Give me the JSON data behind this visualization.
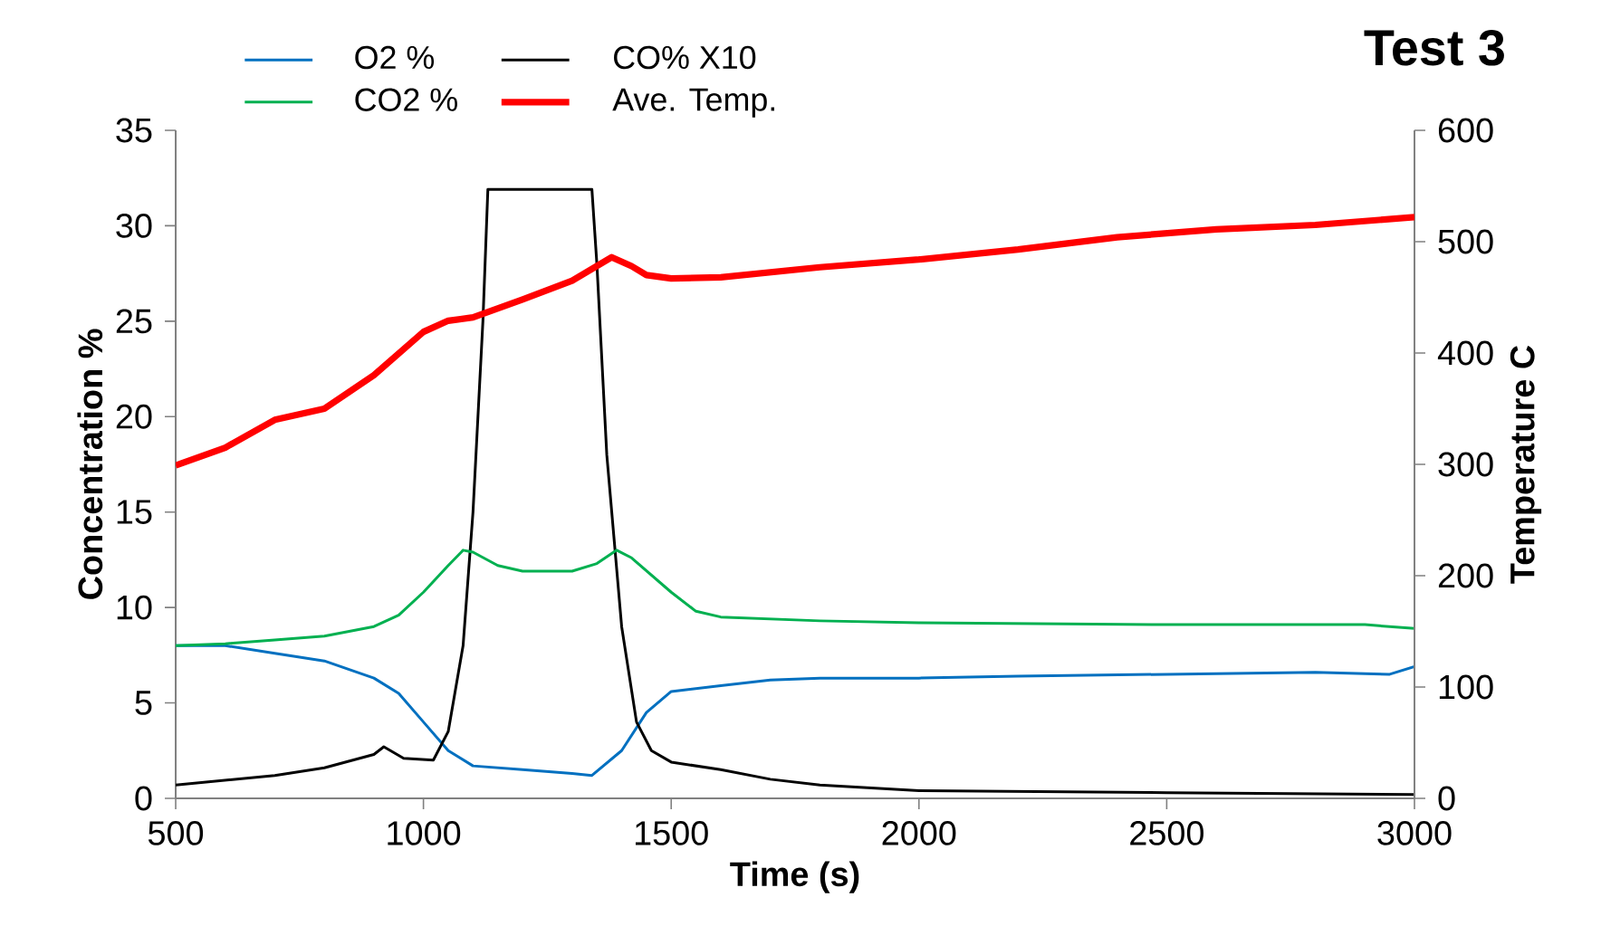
{
  "chart_data": {
    "type": "line",
    "title": "Test 3",
    "xlabel": "Time (s)",
    "ylabel": "Concentration %",
    "y2label": "Temperature C",
    "xlim": [
      500,
      3000
    ],
    "xticks": [
      500,
      1000,
      1500,
      2000,
      2500,
      3000
    ],
    "ylim": [
      0,
      35
    ],
    "yticks": [
      0,
      5,
      10,
      15,
      20,
      25,
      30,
      35
    ],
    "y2lim": [
      0,
      600
    ],
    "y2ticks": [
      0,
      100,
      200,
      300,
      400,
      500,
      600
    ],
    "grid": false,
    "legend": "top",
    "marker": "none",
    "line_style": "solid",
    "series": [
      {
        "name": "O2 %",
        "color": "#0070c0",
        "x": [
          500,
          600,
          700,
          800,
          900,
          950,
          1000,
          1050,
          1100,
          1200,
          1300,
          1340,
          1400,
          1450,
          1500,
          1600,
          1700,
          1800,
          2000,
          2200,
          2500,
          2800,
          2950,
          3000
        ],
        "values": [
          8.0,
          8.0,
          7.6,
          7.2,
          6.3,
          5.5,
          4.0,
          2.5,
          1.7,
          1.5,
          1.3,
          1.2,
          2.5,
          4.5,
          5.6,
          5.9,
          6.2,
          6.3,
          6.3,
          6.4,
          6.5,
          6.6,
          6.5,
          6.9
        ]
      },
      {
        "name": "CO%  X10",
        "color": "#000000",
        "x": [
          500,
          700,
          800,
          900,
          920,
          960,
          1020,
          1050,
          1080,
          1100,
          1120,
          1130,
          1340,
          1350,
          1370,
          1400,
          1430,
          1460,
          1500,
          1600,
          1700,
          1800,
          2000,
          2500,
          3000
        ],
        "values": [
          0.7,
          1.2,
          1.6,
          2.3,
          2.7,
          2.1,
          2.0,
          3.5,
          8,
          15,
          25,
          31.9,
          31.9,
          28,
          18,
          9,
          4,
          2.5,
          1.9,
          1.5,
          1.0,
          0.7,
          0.4,
          0.3,
          0.2
        ]
      },
      {
        "name": "CO2 %",
        "color": "#00b050",
        "x": [
          500,
          600,
          700,
          800,
          900,
          950,
          1000,
          1050,
          1080,
          1100,
          1150,
          1200,
          1300,
          1350,
          1390,
          1420,
          1500,
          1550,
          1600,
          1800,
          2000,
          2500,
          2900,
          3000
        ],
        "values": [
          8.0,
          8.1,
          8.3,
          8.5,
          9.0,
          9.6,
          10.8,
          12.2,
          13.0,
          12.9,
          12.2,
          11.9,
          11.9,
          12.3,
          13.0,
          12.6,
          10.8,
          9.8,
          9.5,
          9.3,
          9.2,
          9.1,
          9.1,
          8.9
        ]
      },
      {
        "name": "Ave. Temp.",
        "color": "#ff0000",
        "axis": "y2",
        "x": [
          500,
          600,
          700,
          800,
          900,
          1000,
          1050,
          1100,
          1200,
          1300,
          1380,
          1420,
          1450,
          1500,
          1600,
          1800,
          2000,
          2200,
          2400,
          2600,
          2800,
          3000
        ],
        "values": [
          299,
          315,
          340,
          350,
          380,
          419,
          429,
          432,
          448,
          465,
          486,
          478,
          470,
          467,
          468,
          477,
          484,
          493,
          504,
          511,
          515,
          522
        ]
      }
    ]
  }
}
